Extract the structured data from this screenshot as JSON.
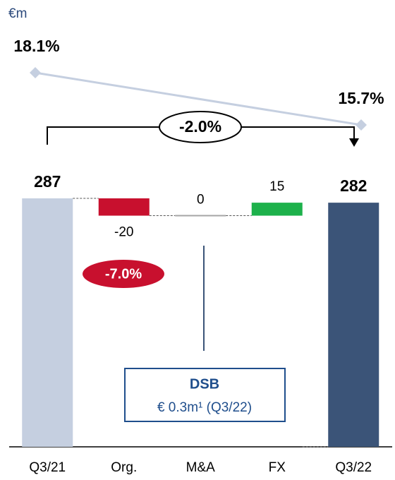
{
  "chart_data": {
    "type": "waterfall",
    "unit_label": "€m",
    "categories": [
      "Q3/21",
      "Org.",
      "M&A",
      "FX",
      "Q3/22"
    ],
    "values": [
      287,
      -20,
      0,
      15,
      282
    ],
    "measures": [
      "total",
      "relative",
      "relative",
      "relative",
      "total"
    ],
    "colors": [
      "#c5cfe0",
      "#c8102e",
      "#a6a6a6",
      "#1db14b",
      "#3b5478"
    ],
    "margin_series": {
      "type": "line",
      "color": "#c5cfe0",
      "values": [
        18.1,
        15.7
      ],
      "value_labels": [
        "18.1%",
        "15.7%"
      ]
    },
    "annotations": {
      "total_change": "-2.0%",
      "organic_change": "-7.0%",
      "box_title": "DSB",
      "box_text": "€ 0.3m¹ (Q3/22)"
    }
  }
}
